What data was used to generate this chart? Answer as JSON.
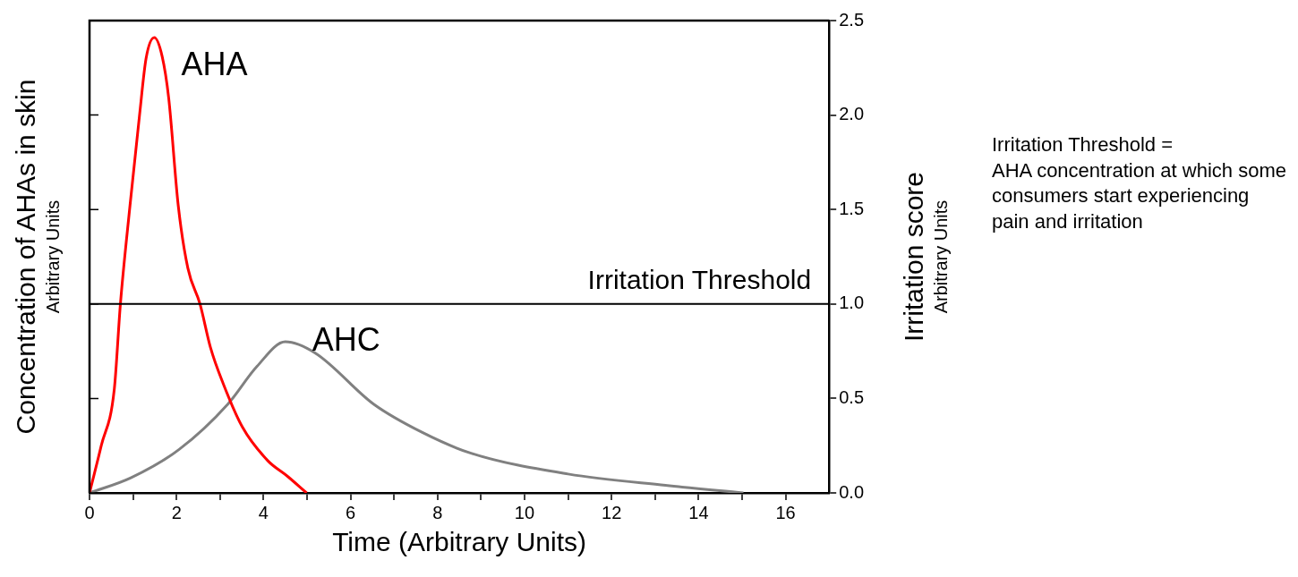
{
  "chart_data": {
    "type": "line",
    "xlabel": "Time (Arbitrary Units)",
    "ylabel": "Concentration of AHAs in skin\nArbitrary Units",
    "y2label": "Irritation score\nArbitrary Units",
    "xlim": [
      0,
      17
    ],
    "xticks": [
      0,
      {
        "value": 1,
        "label": null
      },
      2,
      {
        "value": 3,
        "label": null
      },
      4,
      {
        "value": 5,
        "label": null
      },
      6,
      {
        "value": 7,
        "label": null
      },
      8,
      {
        "value": 9,
        "label": null
      },
      10,
      {
        "value": 11,
        "label": null
      },
      12,
      {
        "value": 13,
        "label": null
      },
      14,
      {
        "value": 15,
        "label": null
      },
      16
    ],
    "y2lim": [
      0,
      2.5
    ],
    "y2ticks": [
      {
        "value": 0,
        "label": "0.0"
      },
      {
        "value": 0.5,
        "label": "0.5"
      },
      {
        "value": 1,
        "label": "1.0"
      },
      {
        "value": 1.5,
        "label": "1.5"
      },
      {
        "value": 2,
        "label": "2.0"
      },
      {
        "value": 2.5,
        "label": "2.5"
      }
    ],
    "grid": false,
    "legend": false,
    "marker": "none",
    "line_style": "solid",
    "series": [
      {
        "name": "AHA",
        "color": "#ff0000",
        "axis": "y2",
        "x": [
          0,
          0.27,
          0.57,
          0.71,
          0.93,
          1.15,
          1.3,
          1.49,
          1.67,
          1.82,
          2.04,
          2.26,
          2.54,
          2.78,
          3.07,
          3.51,
          4.1,
          4.54,
          4.99
        ],
        "values": [
          0,
          0.25,
          0.55,
          1,
          1.52,
          2,
          2.3,
          2.41,
          2.31,
          2.09,
          1.52,
          1.19,
          1,
          0.77,
          0.58,
          0.35,
          0.17,
          0.09,
          0
        ]
      },
      {
        "name": "AHC",
        "color": "#808080",
        "axis": "y2",
        "x": [
          0,
          0.95,
          2.06,
          3.18,
          3.85,
          4.5,
          5.19,
          6.53,
          7.65,
          8.77,
          11,
          13.24,
          15.03
        ],
        "values": [
          0,
          0.08,
          0.23,
          0.47,
          0.67,
          0.8,
          0.74,
          0.47,
          0.32,
          0.21,
          0.1,
          0.04,
          0
        ]
      }
    ],
    "ref_lines": [
      {
        "axis": "y2",
        "value": 1,
        "label": "Irritation Threshold",
        "color": "#000000",
        "line_style": "solid"
      }
    ],
    "annotations": [
      "Irritation Threshold =\nAHA concentration at which some consumers start experiencing pain and irritation"
    ]
  }
}
